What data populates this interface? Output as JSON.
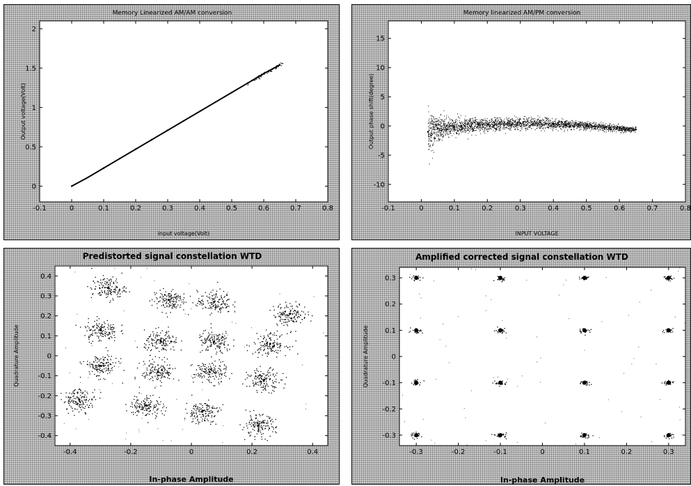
{
  "chart_data": [
    {
      "type": "scatter",
      "title": "Memory Linearized AM/AM conversion",
      "xlabel": "input voltage(Volt)",
      "ylabel": "Output voltage(Volt)",
      "xlim": [
        -0.1,
        0.8
      ],
      "ylim": [
        -0.2,
        2.1
      ],
      "xticks": [
        "-0.1",
        "0",
        "0.1",
        "0.2",
        "0.3",
        "0.4",
        "0.5",
        "0.6",
        "0.7",
        "0.8"
      ],
      "yticks": [
        "0",
        "0.5",
        "1",
        "1.5",
        "2"
      ],
      "series": [
        {
          "x": [
            0.0,
            0.05,
            0.1,
            0.15,
            0.2,
            0.25,
            0.3,
            0.35,
            0.4,
            0.45,
            0.5,
            0.55,
            0.6,
            0.65
          ],
          "y": [
            0.0,
            0.11,
            0.23,
            0.35,
            0.47,
            0.59,
            0.71,
            0.83,
            0.95,
            1.07,
            1.19,
            1.31,
            1.43,
            1.54
          ]
        }
      ]
    },
    {
      "type": "scatter",
      "title": "Memory linearized AM/PM conversion",
      "xlabel": "INPUT VOLTAGE",
      "ylabel": "Output phase shift(degree)",
      "xlim": [
        -0.1,
        0.8
      ],
      "ylim": [
        -13,
        18
      ],
      "xticks": [
        "-0.1",
        "0",
        "0.1",
        "0.2",
        "0.3",
        "0.4",
        "0.5",
        "0.6",
        "0.7",
        "0.8"
      ],
      "yticks": [
        "-10",
        "-5",
        "0",
        "5",
        "10",
        "15"
      ],
      "series": [
        {
          "x": [
            0.02,
            0.05,
            0.1,
            0.2,
            0.3,
            0.4,
            0.5,
            0.6,
            0.65
          ],
          "y": [
            -1.0,
            -0.4,
            -0.1,
            0.2,
            0.5,
            0.4,
            0.1,
            -0.4,
            -0.6
          ],
          "spread": [
            3.0,
            2.0,
            1.3,
            1.0,
            0.9,
            0.7,
            0.6,
            0.5,
            0.4
          ]
        }
      ]
    },
    {
      "type": "scatter",
      "title": "Predistorted signal constellation WTD",
      "xlabel": "In-phase Amplitude",
      "ylabel": "Quadrature Amplitude",
      "xlim": [
        -0.45,
        0.45
      ],
      "ylim": [
        -0.45,
        0.45
      ],
      "xticks": [
        "-0.4",
        "-0.2",
        "0",
        "0.2",
        "0.4"
      ],
      "yticks": [
        "-0.4",
        "-0.3",
        "-0.2",
        "-0.1",
        "0",
        "0.1",
        "0.2",
        "0.3",
        "0.4"
      ],
      "series": [
        {
          "x": [
            -0.275,
            -0.075,
            0.075,
            0.325,
            -0.3,
            -0.1,
            0.075,
            0.26,
            -0.3,
            -0.11,
            0.06,
            0.24,
            -0.37,
            -0.15,
            0.035,
            0.22
          ],
          "y": [
            0.34,
            0.28,
            0.27,
            0.21,
            0.13,
            0.07,
            0.07,
            0.06,
            -0.05,
            -0.08,
            -0.08,
            -0.12,
            -0.22,
            -0.25,
            -0.28,
            -0.35
          ]
        }
      ]
    },
    {
      "type": "scatter",
      "title": "Amplified corrected signal constellation WTD",
      "xlabel": "In-phase Amplitude",
      "ylabel": "Quadrature Amplitude",
      "xlim": [
        -0.34,
        0.34
      ],
      "ylim": [
        -0.34,
        0.34
      ],
      "xticks": [
        "-0.3",
        "-0.2",
        "-0.1",
        "0",
        "0.1",
        "0.2",
        "0.3"
      ],
      "yticks": [
        "-0.3",
        "-0.2",
        "-0.1",
        "0",
        "0.1",
        "0.2",
        "0.3"
      ],
      "series": [
        {
          "x": [
            -0.3,
            -0.1,
            0.1,
            0.3,
            -0.3,
            -0.1,
            0.1,
            0.3,
            -0.3,
            -0.1,
            0.1,
            0.3,
            -0.3,
            -0.1,
            0.1,
            0.3
          ],
          "y": [
            0.3,
            0.3,
            0.3,
            0.3,
            0.1,
            0.1,
            0.1,
            0.1,
            -0.1,
            -0.1,
            -0.1,
            -0.1,
            -0.3,
            -0.3,
            -0.3,
            -0.3
          ]
        }
      ]
    }
  ]
}
